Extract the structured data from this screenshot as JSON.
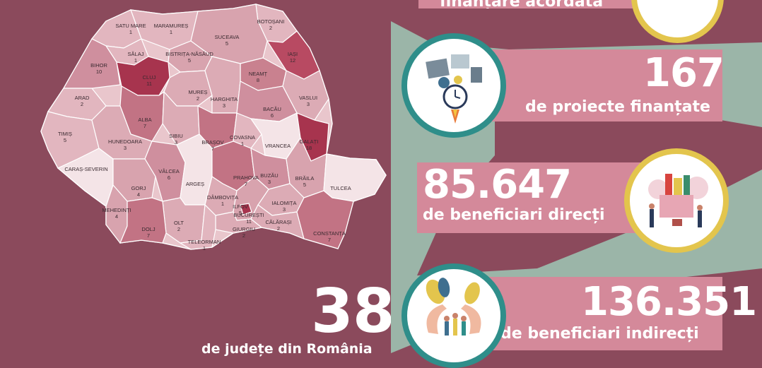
{
  "top_banner": {
    "partial_text": "finanțare acordată"
  },
  "stats": [
    {
      "number": "167",
      "text": "de proiecte finanțate",
      "icon": "project-planning-icon"
    },
    {
      "number": "85.647",
      "text": "de beneficiari direcți",
      "icon": "food-donation-icon"
    },
    {
      "number": "136.351",
      "text": "de beneficiari indirecți",
      "icon": "community-care-icon"
    }
  ],
  "counties_stat": {
    "number": "38",
    "text": "de județe din România"
  },
  "colors": {
    "left_panel": "#8b4a5c",
    "right_panel": "#9bb5a8",
    "banner": "#d4899a",
    "ring_teal": "#2f8e8a",
    "ring_gold": "#e3c54d",
    "map_base": "#e9c6cc",
    "map_dark": "#a7344e"
  },
  "counties": [
    {
      "name": "SATU MARE",
      "value": "1"
    },
    {
      "name": "MARAMUREȘ",
      "value": "1"
    },
    {
      "name": "BOTOȘANI",
      "value": "2"
    },
    {
      "name": "SUCEAVA",
      "value": "5"
    },
    {
      "name": "SĂLAJ",
      "value": "1"
    },
    {
      "name": "BISTRIȚA-NĂSĂUD",
      "value": "5"
    },
    {
      "name": "IAȘI",
      "value": "12"
    },
    {
      "name": "BIHOR",
      "value": "10"
    },
    {
      "name": "CLUJ",
      "value": "11"
    },
    {
      "name": "NEAMȚ",
      "value": "8"
    },
    {
      "name": "ARAD",
      "value": "2"
    },
    {
      "name": "MUREȘ",
      "value": "2"
    },
    {
      "name": "HARGHITA",
      "value": "3"
    },
    {
      "name": "VASLUI",
      "value": "3"
    },
    {
      "name": "BACĂU",
      "value": "6"
    },
    {
      "name": "ALBA",
      "value": "7"
    },
    {
      "name": "TIMIȘ",
      "value": "5"
    },
    {
      "name": "SIBIU",
      "value": "3"
    },
    {
      "name": "BRAȘOV",
      "value": "7"
    },
    {
      "name": "COVASNA",
      "value": "1"
    },
    {
      "name": "HUNEDOARA",
      "value": "3"
    },
    {
      "name": "VRANCEA",
      "value": ""
    },
    {
      "name": "GALAȚI",
      "value": "18"
    },
    {
      "name": "CARAȘ-SEVERIN",
      "value": ""
    },
    {
      "name": "VÂLCEA",
      "value": "6"
    },
    {
      "name": "ARGEȘ",
      "value": ""
    },
    {
      "name": "PRAHOVA",
      "value": "7"
    },
    {
      "name": "BUZĂU",
      "value": "3"
    },
    {
      "name": "BRĂILA",
      "value": "5"
    },
    {
      "name": "TULCEA",
      "value": ""
    },
    {
      "name": "GORJ",
      "value": "4"
    },
    {
      "name": "DÂMBOVIȚA",
      "value": "1"
    },
    {
      "name": "IALOMIȚA",
      "value": "3"
    },
    {
      "name": "MEHEDINȚI",
      "value": "4"
    },
    {
      "name": "ILFOV",
      "value": "5"
    },
    {
      "name": "BUCUREȘTI",
      "value": "11"
    },
    {
      "name": "OLT",
      "value": "2"
    },
    {
      "name": "CĂLĂRAȘI",
      "value": "2"
    },
    {
      "name": "DOLJ",
      "value": "7"
    },
    {
      "name": "GIURGIU",
      "value": "2"
    },
    {
      "name": "CONSTANȚA",
      "value": "7"
    },
    {
      "name": "TELEORMAN",
      "value": "1"
    }
  ]
}
